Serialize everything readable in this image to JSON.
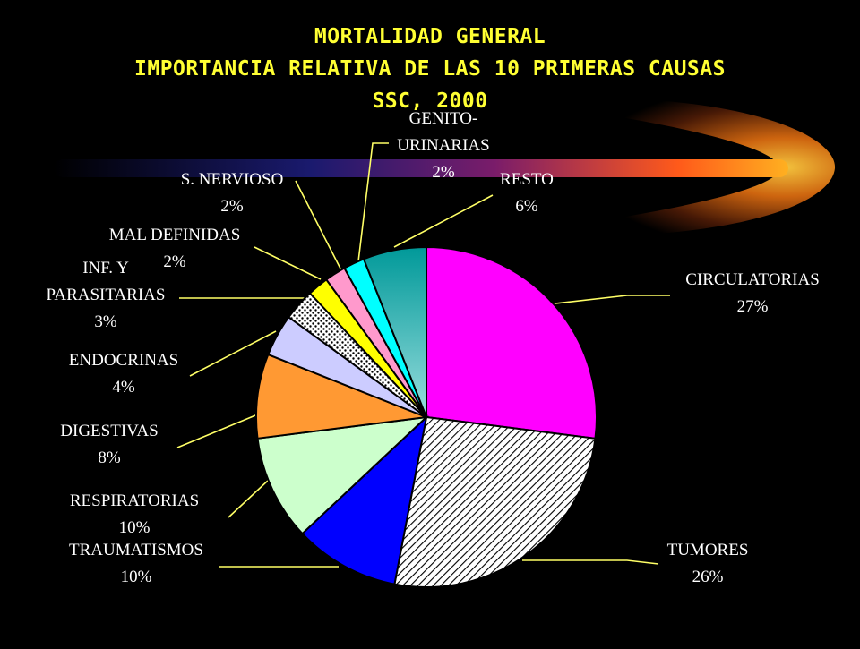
{
  "header": {
    "title": "MORTALIDAD GENERAL",
    "subtitle": "IMPORTANCIA RELATIVA DE LAS 10 PRIMERAS CAUSAS",
    "subtitle2": "SSC, 2000"
  },
  "colors": {
    "background": "#000000",
    "title": "#ffff33",
    "leader_line": "#ffff66",
    "label": "#ffffff"
  },
  "chart_data": {
    "type": "pie",
    "title": "MORTALIDAD GENERAL",
    "start_angle_deg": 0,
    "direction": "clockwise",
    "slices": [
      {
        "lines": [
          "CIRCULATORIAS"
        ],
        "pct_label": "27%",
        "value": 27,
        "color": "#ff00ff",
        "pattern": "solid"
      },
      {
        "lines": [
          "TUMORES"
        ],
        "pct_label": "26%",
        "value": 26,
        "color": "#ffffff",
        "pattern": "diagonal-hatch"
      },
      {
        "lines": [
          "TRAUMATISMOS"
        ],
        "pct_label": "10%",
        "value": 10,
        "color": "#0000ff",
        "pattern": "solid"
      },
      {
        "lines": [
          "RESPIRATORIAS"
        ],
        "pct_label": "10%",
        "value": 10,
        "color": "#ccffcc",
        "pattern": "solid"
      },
      {
        "lines": [
          "DIGESTIVAS"
        ],
        "pct_label": "8%",
        "value": 8,
        "color": "#ff9933",
        "pattern": "solid"
      },
      {
        "lines": [
          "ENDOCRINAS"
        ],
        "pct_label": "4%",
        "value": 4,
        "color": "#ccccff",
        "pattern": "solid"
      },
      {
        "lines": [
          "INF. Y",
          "PARASITARIAS"
        ],
        "pct_label": "3%",
        "value": 3,
        "color": "#ffffff",
        "pattern": "dots"
      },
      {
        "lines": [
          "MAL DEFINIDAS"
        ],
        "pct_label": "2%",
        "value": 2,
        "color": "#ffff00",
        "pattern": "solid"
      },
      {
        "lines": [
          "S. NERVIOSO"
        ],
        "pct_label": "2%",
        "value": 2,
        "color": "#ff99cc",
        "pattern": "solid"
      },
      {
        "lines": [
          "GENITO-",
          "URINARIAS"
        ],
        "pct_label": "2%",
        "value": 2,
        "color": "#00ffff",
        "pattern": "solid"
      },
      {
        "lines": [
          "RESTO"
        ],
        "pct_label": "6%",
        "value": 6,
        "color": "#009999",
        "pattern": "gradient"
      }
    ]
  }
}
